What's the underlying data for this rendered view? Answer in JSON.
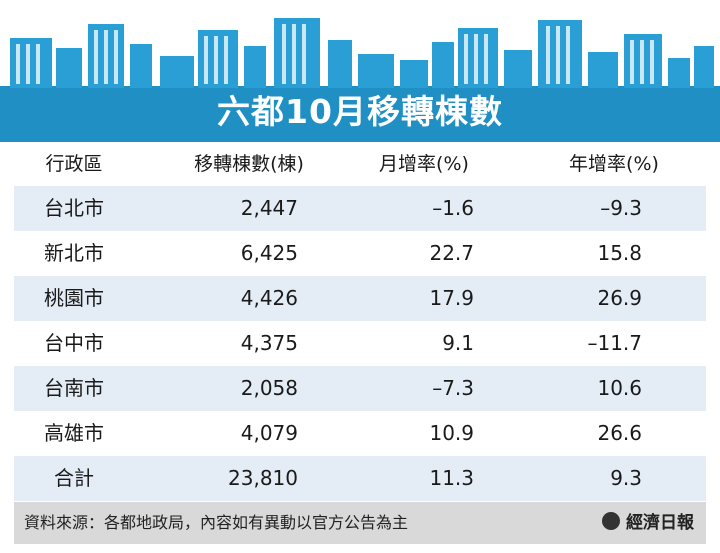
{
  "chart_data": {
    "type": "table",
    "title": "六都10月移轉棟數",
    "columns": [
      "行政區",
      "移轉棟數(棟)",
      "月增率(%)",
      "年增率(%)"
    ],
    "rows": [
      [
        "台北市",
        "2,447",
        "–1.6",
        "–9.3"
      ],
      [
        "新北市",
        "6,425",
        "22.7",
        "15.8"
      ],
      [
        "桃園市",
        "4,426",
        "17.9",
        "26.9"
      ],
      [
        "台中市",
        "4,375",
        "9.1",
        "–11.7"
      ],
      [
        "台南市",
        "2,058",
        "–7.3",
        "10.6"
      ],
      [
        "高雄市",
        "4,079",
        "10.9",
        "26.6"
      ],
      [
        "合計",
        "23,810",
        "11.3",
        "9.3"
      ]
    ]
  },
  "footer": {
    "source": "資料來源：各都地政局，內容如有異動以官方公告為主",
    "brand": "經濟日報"
  },
  "colors": {
    "header_blue": "#1f8fc4",
    "skyline_blue": "#2a9fd6",
    "row_alt": "#e4ecf6",
    "footer_gray": "#d9d9d9"
  }
}
